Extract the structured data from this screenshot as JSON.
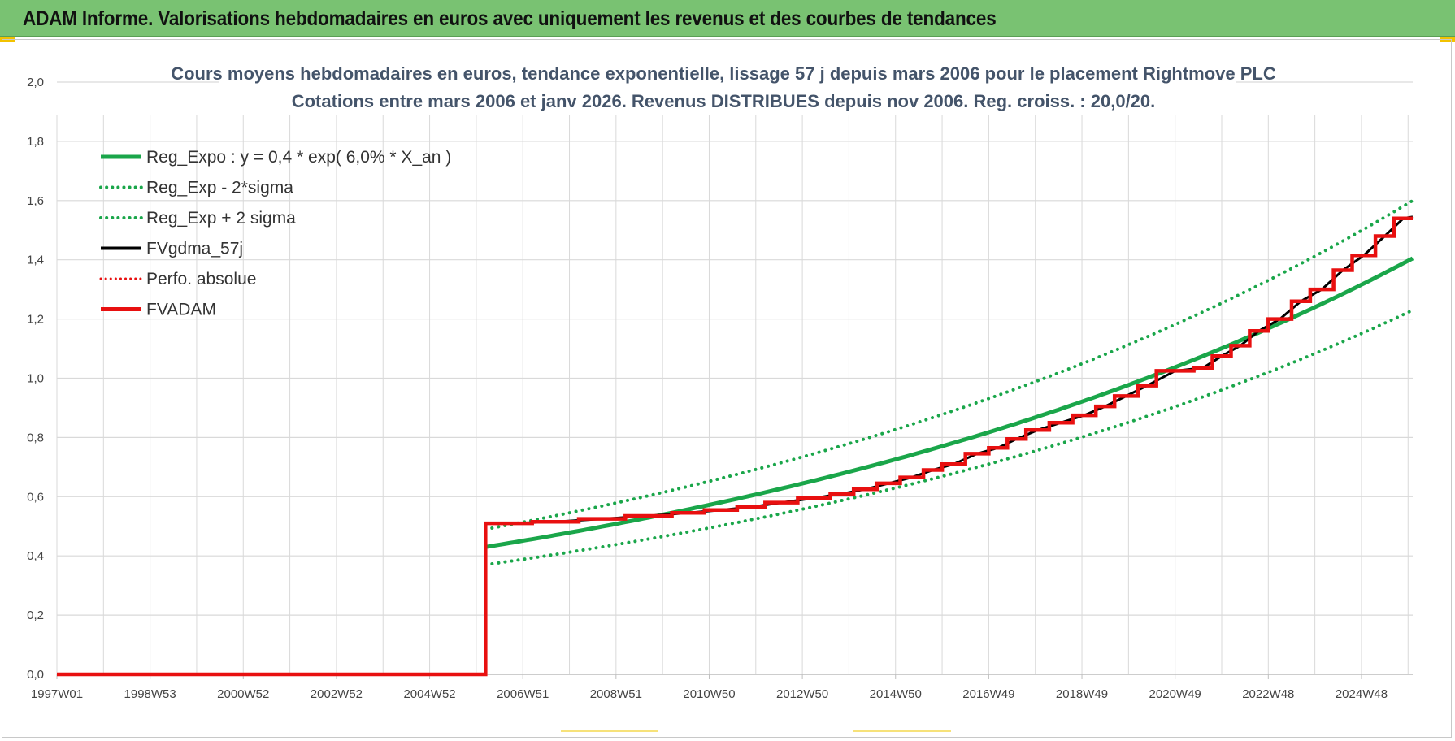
{
  "banner": {
    "title": "ADAM Informe. Valorisations hebdomadaires en euros avec uniquement les revenus et des courbes de tendances"
  },
  "colors": {
    "banner": "#79c272",
    "reg_expo": "#1aa64a",
    "fvgdma": "#000000",
    "fvadam": "#e81010",
    "perfo": "#e81010",
    "grid": "#d9d9d9"
  },
  "chart_data": {
    "type": "line",
    "title_line1": "Cours moyens hebdomadaires en euros, tendance exponentielle, lissage 57 j depuis mars 2006 pour le placement Rightmove PLC",
    "title_line2": "Cotations entre mars 2006 et janv 2026. Revenus DISTRIBUES depuis nov 2006. Reg. croiss. : 20,0/20.",
    "xlabel": "",
    "ylabel": "",
    "ylim": [
      0,
      2.0
    ],
    "xlim": [
      1997.0,
      2026.1
    ],
    "y_ticks": [
      "2,0",
      "1,8",
      "1,6",
      "1,4",
      "1,2",
      "1,0",
      "0,8",
      "0,6",
      "0,4",
      "0,2",
      "0,0"
    ],
    "x_tick_labels": [
      "1997W01",
      "1998W53",
      "2000W52",
      "2002W52",
      "2004W52",
      "2006W51",
      "2008W51",
      "2010W50",
      "2012W50",
      "2014W50",
      "2016W49",
      "2018W49",
      "2020W49",
      "2022W48",
      "2024W48"
    ],
    "x_tick_years": [
      1997.0,
      1999.0,
      2001.0,
      2003.0,
      2005.0,
      2007.0,
      2009.0,
      2011.0,
      2013.0,
      2015.0,
      2017.0,
      2019.0,
      2021.0,
      2023.0,
      2025.0
    ],
    "grid": true,
    "legend_position": "top-left",
    "legend": [
      {
        "key": "reg_expo",
        "label": "Reg_Expo : y = 0,4 * exp( 6,0% *  X_an )",
        "style": "solid-green"
      },
      {
        "key": "reg_minus",
        "label": "Reg_Exp - 2*sigma",
        "style": "dotted-green"
      },
      {
        "key": "reg_plus",
        "label": "Reg_Exp + 2 sigma",
        "style": "dotted-green"
      },
      {
        "key": "fvgdma",
        "label": "FVgdma_57j",
        "style": "solid-black"
      },
      {
        "key": "perfo",
        "label": "Perfo. absolue",
        "style": "dotted-red"
      },
      {
        "key": "fvadam",
        "label": "FVADAM",
        "style": "solid-red"
      }
    ],
    "series": {
      "reg_expo": {
        "start_year": 2006.2,
        "end_year": 2026.1,
        "y_start": 0.43,
        "y_end": 1.405
      },
      "reg_minus": {
        "start_year": 2006.2,
        "end_year": 2026.1,
        "y_start": 0.37,
        "y_end": 1.23
      },
      "reg_plus": {
        "start_year": 2006.2,
        "end_year": 2026.1,
        "y_start": 0.49,
        "y_end": 1.6
      },
      "fvadam_zero_until": 2006.2,
      "fvadam_steps": [
        [
          2006.2,
          0.51
        ],
        [
          2007.2,
          0.515
        ],
        [
          2008.2,
          0.525
        ],
        [
          2009.2,
          0.535
        ],
        [
          2010.2,
          0.545
        ],
        [
          2010.9,
          0.555
        ],
        [
          2011.6,
          0.565
        ],
        [
          2012.2,
          0.58
        ],
        [
          2012.9,
          0.595
        ],
        [
          2013.6,
          0.61
        ],
        [
          2014.1,
          0.625
        ],
        [
          2014.6,
          0.645
        ],
        [
          2015.1,
          0.665
        ],
        [
          2015.6,
          0.69
        ],
        [
          2016.0,
          0.71
        ],
        [
          2016.5,
          0.745
        ],
        [
          2017.0,
          0.765
        ],
        [
          2017.4,
          0.795
        ],
        [
          2017.8,
          0.825
        ],
        [
          2018.3,
          0.85
        ],
        [
          2018.8,
          0.875
        ],
        [
          2019.3,
          0.905
        ],
        [
          2019.7,
          0.94
        ],
        [
          2020.2,
          0.975
        ],
        [
          2020.6,
          1.025
        ],
        [
          2021.4,
          1.035
        ],
        [
          2021.8,
          1.075
        ],
        [
          2022.2,
          1.11
        ],
        [
          2022.6,
          1.16
        ],
        [
          2023.0,
          1.2
        ],
        [
          2023.5,
          1.26
        ],
        [
          2023.9,
          1.3
        ],
        [
          2024.4,
          1.365
        ],
        [
          2024.8,
          1.415
        ],
        [
          2025.3,
          1.48
        ],
        [
          2025.7,
          1.54
        ],
        [
          2026.1,
          1.54
        ]
      ],
      "fvgdma_end": 1.545
    }
  }
}
